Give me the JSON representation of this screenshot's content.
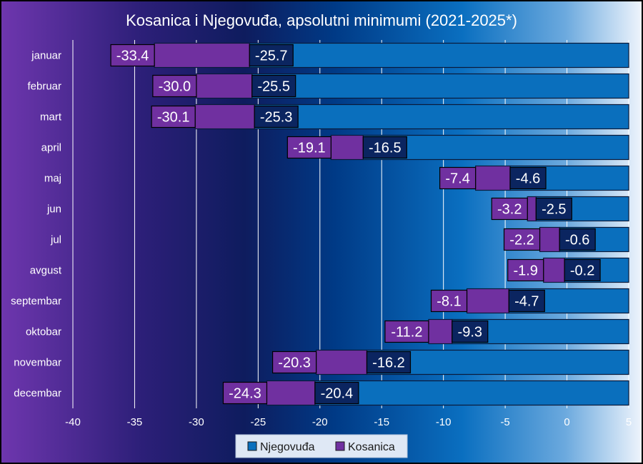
{
  "chart_data": {
    "type": "bar",
    "orientation": "horizontal",
    "title": "Kosanica i Njegovuđa, apsolutni minimumi (2021-2025*)",
    "categories": [
      "januar",
      "februar",
      "mart",
      "april",
      "maj",
      "jun",
      "jul",
      "avgust",
      "septembar",
      "oktobar",
      "novembar",
      "decembar"
    ],
    "series": [
      {
        "name": "Njegovuđa",
        "color": "#0a6fbd",
        "values": [
          -25.7,
          -25.5,
          -25.3,
          -16.5,
          -4.6,
          -2.5,
          -0.6,
          -0.2,
          -4.7,
          -9.3,
          -16.2,
          -20.4
        ]
      },
      {
        "name": "Kosanica",
        "color": "#7030a0",
        "values": [
          -33.4,
          -30.0,
          -30.1,
          -19.1,
          -7.4,
          -3.2,
          -2.2,
          -1.9,
          -8.1,
          -11.2,
          -20.3,
          -24.3
        ]
      }
    ],
    "value_label_display": {
      "Njegovuđa": [
        "-25.7",
        "-25.5",
        "-25.3",
        "-16.5",
        "-4.6",
        "-2.5",
        "-0.6",
        "-0.2",
        "-4.7",
        "-9.3",
        "-16.2",
        "-20.4"
      ],
      "Kosanica": [
        "-33.4",
        "-30.0",
        "-30.1",
        "-19.1",
        "-7.4",
        "-3.2",
        "-2.2",
        "-1.9",
        "-8.1",
        "-11.2",
        "-20.3",
        "-24.3"
      ]
    },
    "xlim": [
      -40,
      5
    ],
    "xticks": [
      -40,
      -35,
      -30,
      -25,
      -20,
      -15,
      -10,
      -5,
      0,
      5
    ],
    "grid": "vertical",
    "legend": "bottom-center"
  },
  "colors": {
    "background_gradient": [
      "#6a32a8",
      "#131c5e",
      "#003a86",
      "#0a6fbd",
      "#e9f1fb"
    ],
    "gridline": "#ffffff",
    "label_box_njegovuda": "#0b2560",
    "label_box_kosanica": "#7030a0"
  }
}
